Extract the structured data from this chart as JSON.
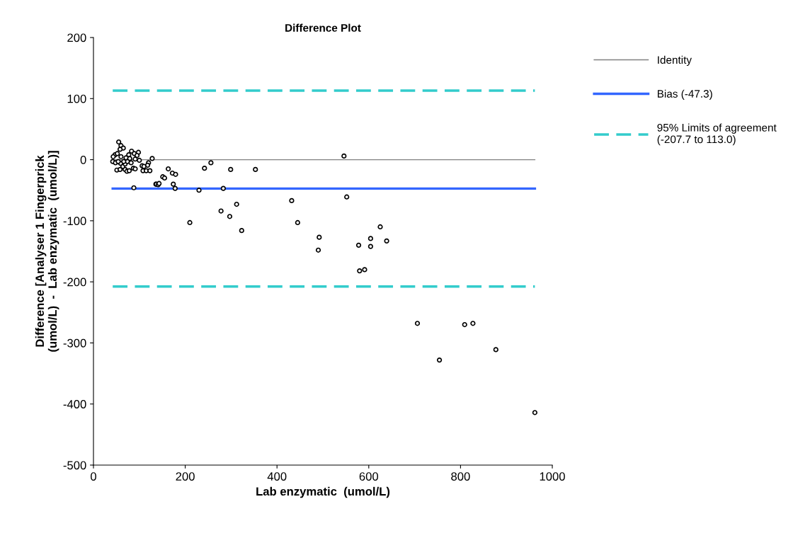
{
  "chart_data": {
    "type": "scatter",
    "title": "Difference Plot",
    "xlabel": "Lab enzymatic  (umol/L)",
    "ylabel": "Difference [Analyser 1 Fingerprick\n(umol/L)  -  Lab enzymatic  (umol/L)]",
    "xlim": [
      0,
      1000
    ],
    "xticks": [
      0,
      200,
      400,
      600,
      800,
      1000
    ],
    "ylim": [
      -500,
      200
    ],
    "yticks": [
      -500,
      -400,
      -300,
      -200,
      -100,
      0,
      100,
      200
    ],
    "grid": false,
    "legend": "right",
    "marker": "circle",
    "series": [
      {
        "color": "#000000",
        "x": [
          55,
          60,
          65,
          58,
          47,
          52,
          60,
          43,
          42,
          48,
          83,
          89,
          98,
          95,
          77,
          71,
          79,
          91,
          100,
          128,
          120,
          118,
          106,
          110,
          87,
          91,
          108,
          115,
          123,
          51,
          58,
          69,
          73,
          78,
          64,
          69,
          59,
          54,
          74,
          82,
          66,
          88,
          136,
          137,
          141,
          143,
          151,
          155,
          163,
          172,
          174,
          178,
          179,
          210,
          230,
          242,
          256,
          278,
          283,
          297,
          299,
          312,
          323,
          353,
          432,
          445,
          490,
          492,
          546,
          552,
          578,
          580,
          591,
          604,
          604,
          625,
          639,
          706,
          754,
          809,
          827,
          877,
          962
        ],
        "values": [
          29,
          23,
          19,
          17,
          8,
          10,
          5,
          5,
          -3,
          -5,
          14,
          10,
          12,
          7,
          8,
          3,
          2,
          1,
          -1,
          2,
          -5,
          -9,
          -10,
          -11,
          -14,
          -15,
          -18,
          -18,
          -18,
          -17,
          -16,
          -16,
          -19,
          -18,
          -11,
          -7,
          -6,
          -3,
          -3,
          -5,
          -3,
          -46,
          -40,
          -40,
          -41,
          -39,
          -28,
          -30,
          -15,
          -22,
          -40,
          -47,
          -24,
          -103,
          -50,
          -14,
          -5,
          -84,
          -47,
          -93,
          -16,
          -73,
          -116,
          -16,
          -67,
          -103,
          -148,
          -127,
          6,
          -61,
          -140,
          -182,
          -180,
          -142,
          -129,
          -110,
          -133,
          -268,
          -328,
          -270,
          -268,
          -311,
          -414
        ]
      }
    ],
    "ref_lines": [
      {
        "axis": "y",
        "value": 0,
        "label": "Identity",
        "color": "#808080",
        "line_style": "solid"
      },
      {
        "axis": "y",
        "value": -47.3,
        "label": "Bias (-47.3)",
        "color": "#3366ff",
        "line_style": "solid"
      },
      {
        "axis": "y",
        "value": 113.0,
        "label": "95% Limits of agreement\n(-207.7 to 113.0)",
        "color": "#33cccc",
        "line_style": "dashed"
      },
      {
        "axis": "y",
        "value": -207.7,
        "label": null,
        "color": "#33cccc",
        "line_style": "dashed"
      }
    ]
  }
}
